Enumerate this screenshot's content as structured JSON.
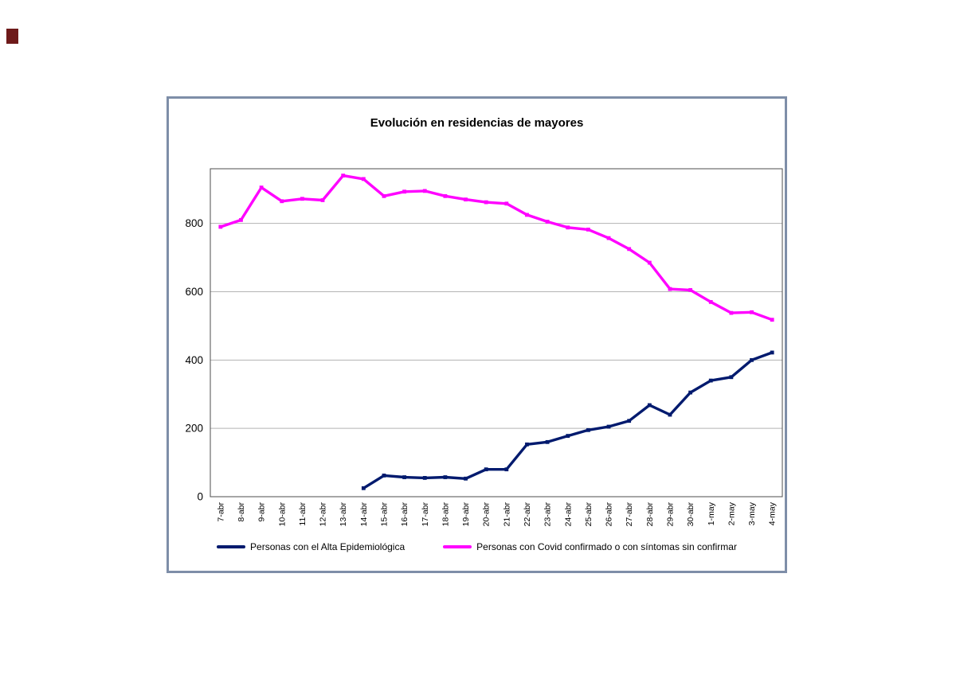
{
  "page": {
    "corner_mark_color": "#6e1a1a"
  },
  "chart": {
    "frame_border_color": "#7e8ea8",
    "gridline_color": "#b3b3b3",
    "axis_color": "#4d4d4d"
  },
  "chart_data": {
    "type": "line",
    "title": "Evolución en residencias de mayores",
    "categories": [
      "7-abr",
      "8-abr",
      "9-abr",
      "10-abr",
      "11-abr",
      "12-abr",
      "13-abr",
      "14-abr",
      "15-abr",
      "16-abr",
      "17-abr",
      "18-abr",
      "19-abr",
      "20-abr",
      "21-abr",
      "22-abr",
      "23-abr",
      "24-abr",
      "25-abr",
      "26-abr",
      "27-abr",
      "28-abr",
      "29-abr",
      "30-abr",
      "1-may",
      "2-may",
      "3-may",
      "4-may"
    ],
    "series": [
      {
        "name": "Personas con el Alta Epidemiológica",
        "color": "#001a6e",
        "values": [
          null,
          null,
          null,
          null,
          null,
          null,
          null,
          25,
          62,
          57,
          55,
          57,
          53,
          80,
          80,
          153,
          160,
          178,
          195,
          205,
          222,
          268,
          240,
          305,
          340,
          350,
          400,
          422
        ]
      },
      {
        "name": "Personas con Covid confirmado o con síntomas sin confirmar",
        "color": "#ff00ff",
        "values": [
          790,
          810,
          905,
          865,
          872,
          868,
          940,
          930,
          880,
          893,
          895,
          880,
          870,
          862,
          858,
          825,
          805,
          788,
          782,
          757,
          725,
          685,
          608,
          605,
          570,
          538,
          540,
          518
        ]
      }
    ],
    "xlabel": "",
    "ylabel": "",
    "ylim": [
      0,
      960
    ],
    "yticks": [
      0,
      200,
      400,
      600,
      800
    ],
    "grid": true,
    "legend_position": "bottom"
  }
}
